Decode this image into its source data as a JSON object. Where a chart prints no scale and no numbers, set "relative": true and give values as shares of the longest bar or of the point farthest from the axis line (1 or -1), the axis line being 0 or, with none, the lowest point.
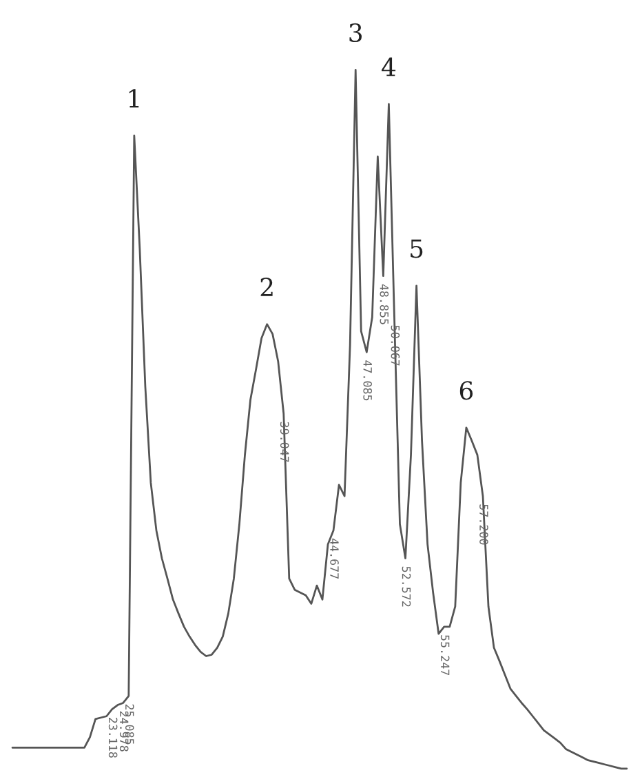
{
  "chart_data": {
    "type": "line",
    "relative": true,
    "color": "#555555",
    "categories": [
      null,
      null,
      null,
      null,
      null,
      null,
      null,
      null,
      null,
      null,
      null,
      null,
      null,
      null,
      null,
      null,
      null,
      null,
      null,
      null,
      null,
      null,
      null,
      null,
      null,
      null,
      null,
      null,
      null,
      null,
      null,
      null,
      null,
      null,
      null,
      null,
      null,
      null,
      null,
      null,
      null,
      null,
      null,
      null,
      null,
      null,
      null,
      null,
      null,
      null,
      null,
      null,
      null,
      null,
      null,
      null,
      null,
      null,
      null,
      null,
      null,
      null,
      null,
      null,
      null,
      null,
      null,
      null,
      null,
      null,
      null,
      null,
      null,
      null,
      null,
      null,
      null,
      null,
      null,
      null,
      null,
      null,
      null,
      null,
      null,
      null,
      null,
      null,
      null,
      null,
      null,
      null,
      null,
      null,
      null,
      null,
      null,
      null,
      null,
      null,
      null,
      null,
      null,
      null,
      null,
      null,
      null,
      null,
      null,
      null,
      null,
      null
    ],
    "values": [
      0.03,
      0.03,
      0.03,
      0.03,
      0.03,
      0.03,
      0.03,
      0.03,
      0.03,
      0.03,
      0.03,
      0.03,
      0.03,
      0.03,
      0.045,
      0.071,
      0.073,
      0.075,
      0.085,
      0.091,
      0.094,
      0.104,
      0.906,
      0.744,
      0.547,
      0.409,
      0.341,
      0.301,
      0.272,
      0.242,
      0.222,
      0.203,
      0.189,
      0.177,
      0.167,
      0.161,
      0.163,
      0.173,
      0.189,
      0.222,
      0.272,
      0.35,
      0.449,
      0.528,
      0.571,
      0.616,
      0.636,
      0.622,
      0.583,
      0.508,
      0.272,
      0.256,
      0.252,
      0.248,
      0.236,
      0.262,
      0.242,
      0.321,
      0.341,
      0.406,
      0.39,
      0.606,
      1.0,
      0.626,
      0.596,
      0.646,
      0.876,
      0.705,
      0.951,
      0.646,
      0.35,
      0.301,
      0.449,
      0.691,
      0.469,
      0.321,
      0.252,
      0.193,
      0.203,
      0.203,
      0.232,
      0.409,
      0.488,
      0.469,
      0.449,
      0.39,
      0.232,
      0.173,
      0.154,
      0.134,
      0.114,
      0.104,
      0.094,
      0.085,
      0.075,
      0.065,
      0.055,
      0.049,
      0.043,
      0.037,
      0.028,
      0.024,
      0.02,
      0.016,
      0.012,
      0.01,
      0.008,
      0.006,
      0.004,
      0.002,
      0.0,
      0.0
    ],
    "annotations": [
      "1",
      "2",
      "3",
      "4",
      "5",
      "6",
      {
        "text": "23.118",
        "y": 0.085
      },
      {
        "text": "24.978",
        "y": 0.094
      },
      {
        "text": "25.085",
        "y": 0.104
      },
      {
        "text": "39.047",
        "y": 0.508
      },
      {
        "text": "44.677",
        "y": 0.341
      },
      {
        "text": "47.085",
        "y": 0.596
      },
      {
        "text": "48.855",
        "y": 0.705
      },
      {
        "text": "50.067",
        "y": 0.646
      },
      {
        "text": "52.572",
        "y": 0.301
      },
      {
        "text": "55.247",
        "y": 0.203
      },
      {
        "text": "57.200",
        "y": 0.39
      }
    ]
  }
}
